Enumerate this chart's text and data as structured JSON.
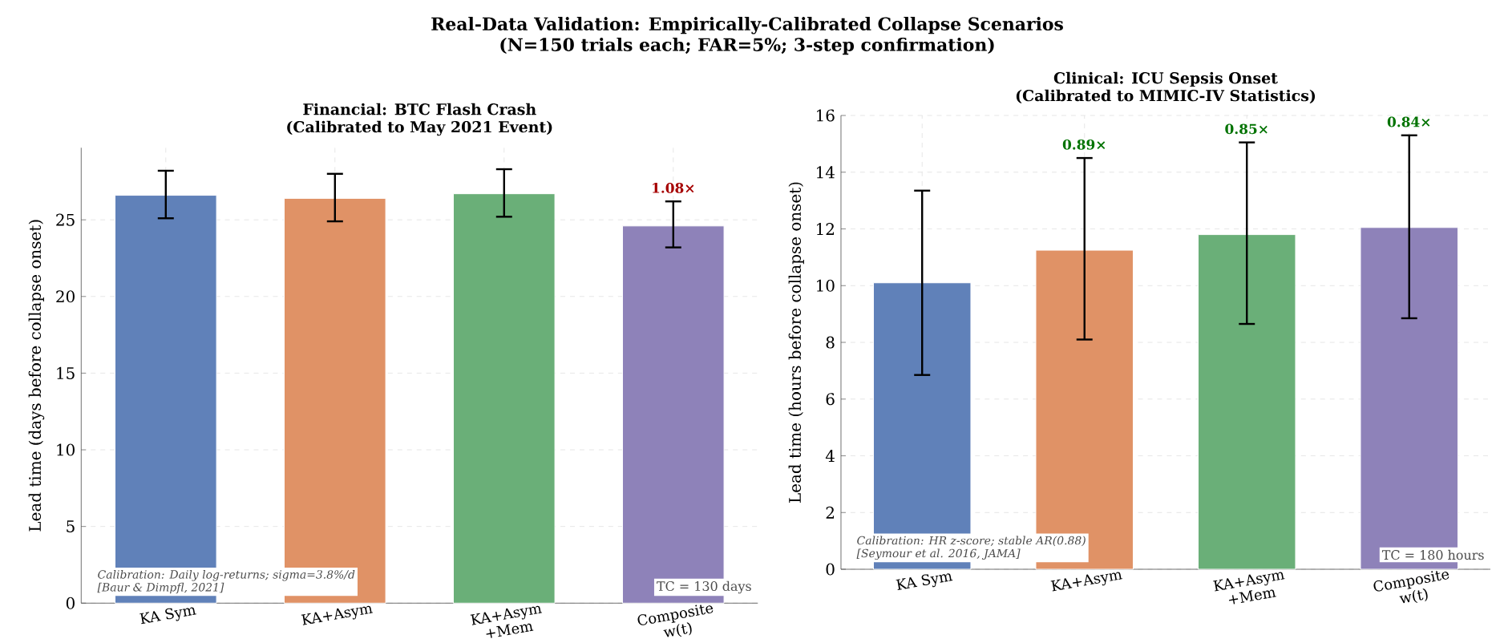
{
  "chart_data": [
    {
      "type": "other",
      "title": "Real-Data Validation: Empirically-Calibrated Collapse Scenarios",
      "subtitle": "(N=150 trials each; FAR=5%; 3-step confirmation)"
    },
    {
      "type": "bar",
      "title": "Financial: BTC Flash Crash",
      "subtitle": "(Calibrated to May 2021 Event)",
      "ylabel": "Lead time (days before collapse onset)",
      "categories": [
        "KA Sym",
        "KA+Asym",
        "KA+Asym +Mem",
        "Composite w(t)"
      ],
      "values": [
        26.6,
        26.4,
        26.7,
        24.6
      ],
      "errors": [
        [
          25.1,
          28.2
        ],
        [
          24.9,
          28.0
        ],
        [
          25.2,
          28.3
        ],
        [
          23.2,
          26.2
        ]
      ],
      "colors": [
        "#6081b9",
        "#e09266",
        "#6aaf78",
        "#8e82b9"
      ],
      "ylim": [
        0,
        29.7
      ],
      "yticks": [
        0,
        5,
        10,
        15,
        20,
        25
      ],
      "grid": true,
      "annotations": [
        "Calibration: Daily log-returns; sigma=3.8%/d",
        "[Baur & Dimpfl, 2021]",
        "TC = 130 days",
        {
          "text": "1.08×",
          "x": "Composite w(t)",
          "y": 26.2
        }
      ]
    },
    {
      "type": "bar",
      "title": "Clinical: ICU Sepsis Onset",
      "subtitle": "(Calibrated to MIMIC-IV Statistics)",
      "ylabel": "Lead time (hours before collapse onset)",
      "categories": [
        "KA Sym",
        "KA+Asym",
        "KA+Asym +Mem",
        "Composite w(t)"
      ],
      "values": [
        10.1,
        11.25,
        11.8,
        12.05
      ],
      "errors": [
        [
          6.85,
          13.35
        ],
        [
          8.1,
          14.5
        ],
        [
          8.65,
          15.05
        ],
        [
          8.85,
          15.3
        ]
      ],
      "colors": [
        "#6081b9",
        "#e09266",
        "#6aaf78",
        "#8e82b9"
      ],
      "ylim": [
        0,
        16
      ],
      "yticks": [
        0,
        2,
        4,
        6,
        8,
        10,
        12,
        14,
        16
      ],
      "grid": true,
      "annotations": [
        "Calibration: HR z-score; stable AR(0.88)",
        "[Seymour et al. 2016, JAMA]",
        "TC = 180 hours",
        {
          "text": "0.89×",
          "x": "KA+Asym",
          "y": 14.5
        },
        {
          "text": "0.85×",
          "x": "KA+Asym +Mem",
          "y": 15.05
        },
        {
          "text": "0.84×",
          "x": "Composite w(t)",
          "y": 15.3
        }
      ]
    }
  ]
}
